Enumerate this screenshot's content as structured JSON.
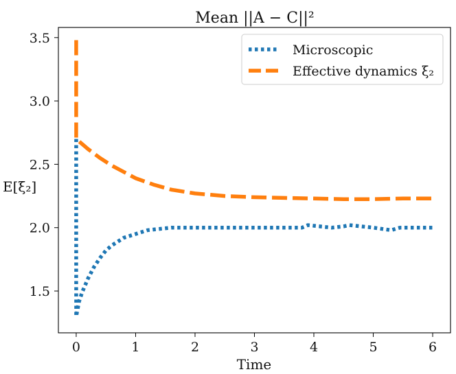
{
  "chart_data": {
    "type": "line",
    "title": "Mean ||A − C||²",
    "xlabel": "Time",
    "ylabel": "E[ξ₂]",
    "xlim": [
      -0.3,
      6.3
    ],
    "ylim": [
      1.17,
      3.58
    ],
    "x_ticks": [
      0,
      1,
      2,
      3,
      4,
      5,
      6
    ],
    "x_tick_labels": [
      "0",
      "1",
      "2",
      "3",
      "4",
      "5",
      "6"
    ],
    "y_ticks": [
      1.5,
      2.0,
      2.5,
      3.0,
      3.5
    ],
    "y_tick_labels": [
      "1.5",
      "2.0",
      "2.5",
      "3.0",
      "3.5"
    ],
    "grid": false,
    "legend_position": "top-right",
    "series": [
      {
        "name": "Microscopic",
        "color": "#1f77b4",
        "style": "dotted",
        "x": [
          0,
          0,
          0.05,
          0.1,
          0.2,
          0.3,
          0.4,
          0.5,
          0.6,
          0.7,
          0.8,
          1.0,
          1.2,
          1.4,
          1.6,
          1.8,
          2.0,
          2.3,
          2.6,
          2.9,
          3.2,
          3.5,
          3.8,
          3.9,
          4.1,
          4.3,
          4.5,
          4.6,
          4.8,
          5.0,
          5.15,
          5.3,
          5.45,
          5.6,
          5.8,
          6.0
        ],
        "y": [
          2.7,
          1.3,
          1.42,
          1.49,
          1.6,
          1.69,
          1.76,
          1.82,
          1.86,
          1.89,
          1.92,
          1.95,
          1.98,
          1.99,
          2.0,
          2.0,
          2.0,
          2.0,
          2.0,
          2.0,
          2.0,
          2.0,
          2.0,
          2.02,
          2.01,
          2.0,
          2.01,
          2.02,
          2.01,
          2.0,
          1.99,
          1.98,
          2.0,
          2.0,
          2.0,
          2.0
        ]
      },
      {
        "name": "Effective dynamics ξ₂",
        "color": "#ff7f0e",
        "style": "dashed",
        "x": [
          0,
          0,
          0.1,
          0.2,
          0.4,
          0.6,
          0.8,
          1.0,
          1.3,
          1.6,
          2.0,
          2.5,
          3.0,
          3.5,
          4.0,
          4.5,
          5.0,
          5.5,
          6.0
        ],
        "y": [
          3.48,
          2.7,
          2.66,
          2.62,
          2.55,
          2.49,
          2.44,
          2.39,
          2.34,
          2.3,
          2.27,
          2.25,
          2.24,
          2.235,
          2.23,
          2.225,
          2.225,
          2.23,
          2.23
        ]
      }
    ]
  }
}
